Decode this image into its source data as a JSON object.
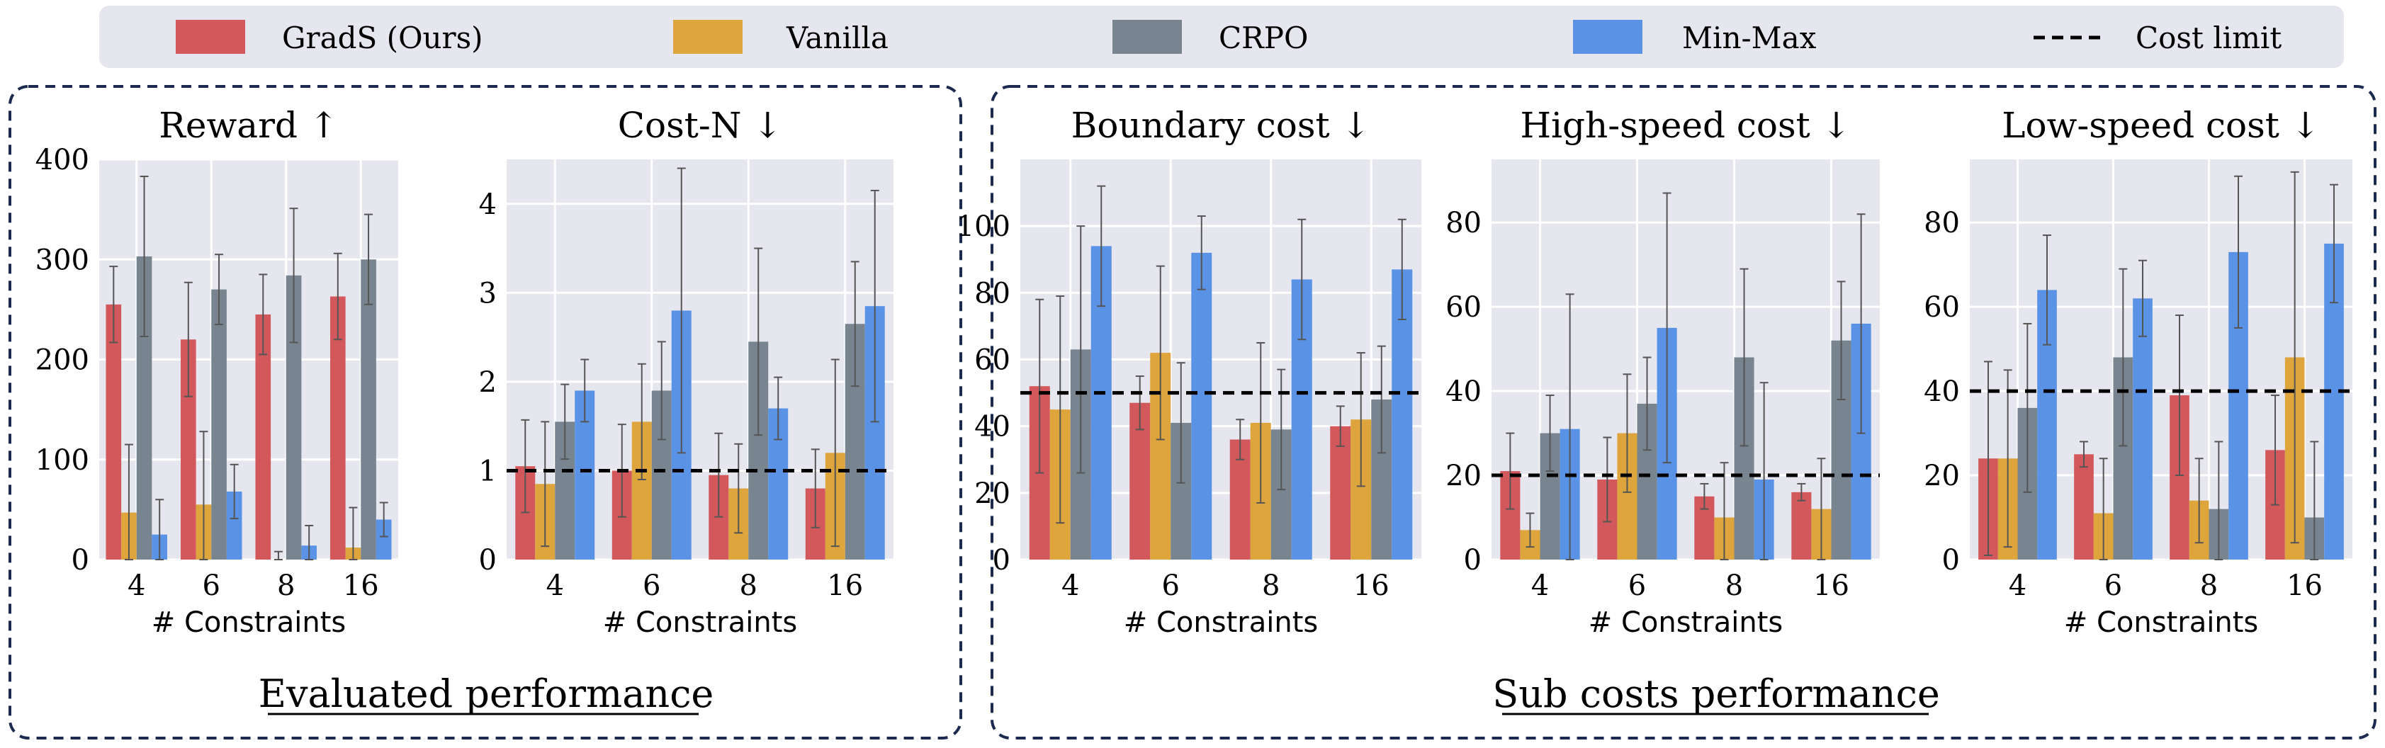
{
  "legend": {
    "items": [
      {
        "label": "GradS (Ours)",
        "color": "#d2585b"
      },
      {
        "label": "Vanilla",
        "color": "#dea53c"
      },
      {
        "label": "CRPO",
        "color": "#788591"
      },
      {
        "label": "Min-Max",
        "color": "#5a93e6"
      }
    ],
    "cost_limit_label": "Cost limit"
  },
  "groups": [
    {
      "label": "Evaluated performance"
    },
    {
      "label": "Sub costs performance"
    }
  ],
  "chart_data": [
    {
      "type": "bar",
      "title": "Reward ↑",
      "xlabel": "# Constraints",
      "ylabel": "",
      "categories": [
        "4",
        "6",
        "8",
        "16"
      ],
      "ylim": [
        0,
        400
      ],
      "yticks": [
        0,
        100,
        200,
        300,
        400
      ],
      "cost_limit": null,
      "series": [
        {
          "name": "GradS (Ours)",
          "values": [
            255,
            220,
            245,
            263
          ],
          "err": [
            38,
            57,
            40,
            43
          ]
        },
        {
          "name": "Vanilla",
          "values": [
            47,
            55,
            0,
            12
          ],
          "err": [
            68,
            73,
            8,
            40
          ]
        },
        {
          "name": "CRPO",
          "values": [
            303,
            270,
            284,
            300
          ],
          "err": [
            80,
            35,
            67,
            45
          ]
        },
        {
          "name": "Min-Max",
          "values": [
            25,
            68,
            14,
            40
          ],
          "err": [
            35,
            27,
            20,
            17
          ]
        }
      ]
    },
    {
      "type": "bar",
      "title": "Cost-N ↓",
      "xlabel": "# Constraints",
      "ylabel": "",
      "categories": [
        "4",
        "6",
        "8",
        "16"
      ],
      "ylim": [
        0,
        4.5
      ],
      "yticks": [
        0,
        1,
        2,
        3,
        4
      ],
      "cost_limit": 1,
      "series": [
        {
          "name": "GradS (Ours)",
          "values": [
            1.05,
            1.0,
            0.95,
            0.8
          ],
          "err": [
            0.52,
            0.52,
            0.47,
            0.44
          ]
        },
        {
          "name": "Vanilla",
          "values": [
            0.85,
            1.55,
            0.8,
            1.2
          ],
          "err": [
            0.7,
            0.65,
            0.5,
            1.05
          ]
        },
        {
          "name": "CRPO",
          "values": [
            1.55,
            1.9,
            2.45,
            2.65
          ],
          "err": [
            0.42,
            0.55,
            1.05,
            0.7
          ]
        },
        {
          "name": "Min-Max",
          "values": [
            1.9,
            2.8,
            1.7,
            2.85
          ],
          "err": [
            0.35,
            1.6,
            0.35,
            1.3
          ]
        }
      ]
    },
    {
      "type": "bar",
      "title": "Boundary cost ↓",
      "xlabel": "# Constraints",
      "ylabel": "",
      "categories": [
        "4",
        "6",
        "8",
        "16"
      ],
      "ylim": [
        0,
        120
      ],
      "yticks": [
        0,
        20,
        40,
        60,
        80,
        100
      ],
      "cost_limit": 50,
      "series": [
        {
          "name": "GradS (Ours)",
          "values": [
            52,
            47,
            36,
            40
          ],
          "err": [
            26,
            8,
            6,
            6
          ]
        },
        {
          "name": "Vanilla",
          "values": [
            45,
            62,
            41,
            42
          ],
          "err": [
            34,
            26,
            24,
            20
          ]
        },
        {
          "name": "CRPO",
          "values": [
            63,
            41,
            39,
            48
          ],
          "err": [
            37,
            18,
            18,
            16
          ]
        },
        {
          "name": "Min-Max",
          "values": [
            94,
            92,
            84,
            87
          ],
          "err": [
            18,
            11,
            18,
            15
          ]
        }
      ]
    },
    {
      "type": "bar",
      "title": "High-speed cost ↓",
      "xlabel": "# Constraints",
      "ylabel": "",
      "categories": [
        "4",
        "6",
        "8",
        "16"
      ],
      "ylim": [
        0,
        95
      ],
      "yticks": [
        0,
        20,
        40,
        60,
        80
      ],
      "cost_limit": 20,
      "series": [
        {
          "name": "GradS (Ours)",
          "values": [
            21,
            19,
            15,
            16
          ],
          "err": [
            9,
            10,
            3,
            2
          ]
        },
        {
          "name": "Vanilla",
          "values": [
            7,
            30,
            10,
            12
          ],
          "err": [
            4,
            14,
            13,
            12
          ]
        },
        {
          "name": "CRPO",
          "values": [
            30,
            37,
            48,
            52
          ],
          "err": [
            9,
            11,
            21,
            14
          ]
        },
        {
          "name": "Min-Max",
          "values": [
            31,
            55,
            19,
            56
          ],
          "err": [
            32,
            32,
            23,
            26
          ]
        }
      ]
    },
    {
      "type": "bar",
      "title": "Low-speed cost ↓",
      "xlabel": "# Constraints",
      "ylabel": "",
      "categories": [
        "4",
        "6",
        "8",
        "16"
      ],
      "ylim": [
        0,
        95
      ],
      "yticks": [
        0,
        20,
        40,
        60,
        80
      ],
      "cost_limit": 40,
      "series": [
        {
          "name": "GradS (Ours)",
          "values": [
            24,
            25,
            39,
            26
          ],
          "err": [
            23,
            3,
            19,
            13
          ]
        },
        {
          "name": "Vanilla",
          "values": [
            24,
            11,
            14,
            48
          ],
          "err": [
            21,
            13,
            10,
            44
          ]
        },
        {
          "name": "CRPO",
          "values": [
            36,
            48,
            12,
            10
          ],
          "err": [
            20,
            21,
            16,
            18
          ]
        },
        {
          "name": "Min-Max",
          "values": [
            64,
            62,
            73,
            75
          ],
          "err": [
            13,
            9,
            18,
            14
          ]
        }
      ]
    }
  ]
}
